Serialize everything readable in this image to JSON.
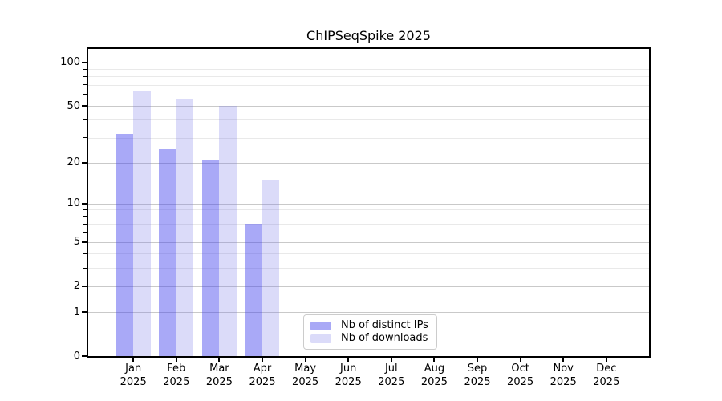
{
  "chart_data": {
    "type": "bar",
    "title": "ChIPSeqSpike 2025",
    "categories": [
      "Jan",
      "Feb",
      "Mar",
      "Apr",
      "May",
      "Jun",
      "Jul",
      "Aug",
      "Sep",
      "Oct",
      "Nov",
      "Dec"
    ],
    "year_label": "2025",
    "series": [
      {
        "name": "Nb of distinct IPs",
        "bar_color": "rgba(64,64,237,0.45)",
        "swatch_color": "#a9a9f6",
        "values": [
          32,
          25,
          21,
          7,
          null,
          null,
          null,
          null,
          null,
          null,
          null,
          null
        ]
      },
      {
        "name": "Nb of downloads",
        "bar_color": "rgba(117,117,232,0.26)",
        "swatch_color": "#dbdbf9",
        "values": [
          63,
          56,
          50,
          15,
          null,
          null,
          null,
          null,
          null,
          null,
          null,
          null
        ]
      }
    ],
    "y_axis": {
      "scale": "log1p",
      "ticks": [
        100,
        50,
        20,
        10,
        5,
        2,
        1,
        0
      ],
      "minor_ticks": [
        90,
        80,
        70,
        60,
        40,
        30,
        9,
        8,
        7,
        6,
        4,
        3
      ],
      "top_value": 124
    },
    "legend": {
      "position": "lower center"
    },
    "colors": {
      "major_grid": "#c9c9c9",
      "minor_grid": "#e9e9e9",
      "spine": "#000000",
      "text": "#000000",
      "background": "#ffffff"
    }
  }
}
